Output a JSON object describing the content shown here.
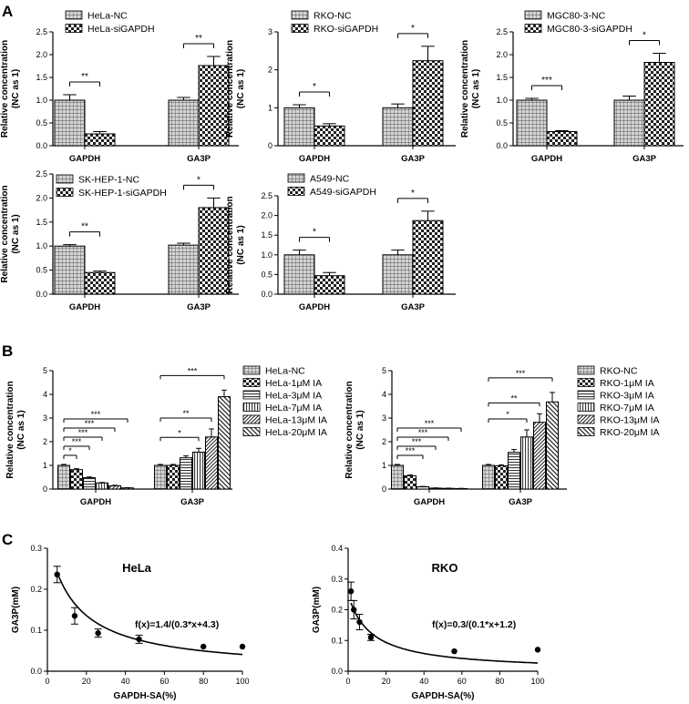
{
  "panel_letters": [
    "A",
    "B",
    "C"
  ],
  "chart_data": [
    {
      "id": "A1",
      "type": "bar",
      "categories": [
        "GAPDH",
        "GA3P"
      ],
      "series": [
        {
          "name": "HeLa-NC",
          "pattern": "grid",
          "values": [
            1.0,
            1.0
          ],
          "errors": [
            0.12,
            0.06
          ]
        },
        {
          "name": "HeLa-siGAPDH",
          "pattern": "check",
          "values": [
            0.26,
            1.76
          ],
          "errors": [
            0.05,
            0.2
          ]
        }
      ],
      "ylabel": [
        "Relative concentration",
        "(NC as 1)"
      ],
      "ylim": [
        0,
        2.5
      ],
      "yticks": [
        "0.0",
        "0.5",
        "1.0",
        "1.5",
        "2.0",
        "2.5"
      ],
      "significance": [
        "**",
        "**"
      ]
    },
    {
      "id": "A2",
      "type": "bar",
      "categories": [
        "GAPDH",
        "GA3P"
      ],
      "series": [
        {
          "name": "RKO-NC",
          "pattern": "grid",
          "values": [
            1.0,
            1.0
          ],
          "errors": [
            0.08,
            0.1
          ]
        },
        {
          "name": "RKO-siGAPDH",
          "pattern": "check",
          "values": [
            0.52,
            2.24
          ],
          "errors": [
            0.06,
            0.38
          ]
        }
      ],
      "ylabel": [
        "Relative concentration",
        "(NC as 1)"
      ],
      "ylim": [
        0,
        3
      ],
      "yticks": [
        "0",
        "1",
        "2",
        "3"
      ],
      "significance": [
        "*",
        "*"
      ]
    },
    {
      "id": "A3",
      "type": "bar",
      "categories": [
        "GAPDH",
        "GA3P"
      ],
      "series": [
        {
          "name": "MGC80-3-NC",
          "pattern": "grid",
          "values": [
            1.0,
            1.0
          ],
          "errors": [
            0.04,
            0.09
          ]
        },
        {
          "name": "MGC80-3-siGAPDH",
          "pattern": "check",
          "values": [
            0.31,
            1.83
          ],
          "errors": [
            0.02,
            0.2
          ]
        }
      ],
      "ylabel": [
        "Relative concentration",
        "(NC as 1)"
      ],
      "ylim": [
        0,
        2.5
      ],
      "yticks": [
        "0.0",
        "0.5",
        "1.0",
        "1.5",
        "2.0",
        "2.5"
      ],
      "significance": [
        "***",
        "*"
      ]
    },
    {
      "id": "A4",
      "type": "bar",
      "categories": [
        "GAPDH",
        "GA3P"
      ],
      "series": [
        {
          "name": "SK-HEP-1-NC",
          "pattern": "grid",
          "values": [
            1.0,
            1.02
          ],
          "errors": [
            0.03,
            0.04
          ]
        },
        {
          "name": "SK-HEP-1-siGAPDH",
          "pattern": "check",
          "values": [
            0.45,
            1.8
          ],
          "errors": [
            0.03,
            0.2
          ]
        }
      ],
      "ylabel": [
        "Relative concentration",
        "(NC as 1)"
      ],
      "ylim": [
        0,
        2.5
      ],
      "yticks": [
        "0.0",
        "0.5",
        "1.0",
        "1.5",
        "2.0",
        "2.5"
      ],
      "significance": [
        "**",
        "*"
      ]
    },
    {
      "id": "A5",
      "type": "bar",
      "categories": [
        "GAPDH",
        "GA3P"
      ],
      "series": [
        {
          "name": "A549-NC",
          "pattern": "grid",
          "values": [
            1.0,
            1.0
          ],
          "errors": [
            0.12,
            0.12
          ]
        },
        {
          "name": "A549-siGAPDH",
          "pattern": "check",
          "values": [
            0.47,
            1.87
          ],
          "errors": [
            0.08,
            0.24
          ]
        }
      ],
      "ylabel": [
        "Relative concentration",
        "(NC as 1)"
      ],
      "ylim": [
        0,
        2.5
      ],
      "yticks": [
        "0.0",
        "0.5",
        "1.0",
        "1.5",
        "2.0",
        "2.5"
      ],
      "significance": [
        "*",
        "*"
      ]
    },
    {
      "id": "B1",
      "type": "bar",
      "categories": [
        "GAPDH",
        "GA3P"
      ],
      "series": [
        {
          "name": "HeLa-NC",
          "pattern": "grid",
          "values": [
            1.0,
            1.0
          ],
          "errors": [
            0.04,
            0.04
          ]
        },
        {
          "name": "HeLa-1μM IA",
          "pattern": "check",
          "values": [
            0.82,
            1.0
          ],
          "errors": [
            0.04,
            0.04
          ]
        },
        {
          "name": "HeLa-3μM IA",
          "pattern": "hlines",
          "values": [
            0.48,
            1.32
          ],
          "errors": [
            0.03,
            0.08
          ]
        },
        {
          "name": "HeLa-7μM IA",
          "pattern": "vlines",
          "values": [
            0.26,
            1.56
          ],
          "errors": [
            0.02,
            0.16
          ]
        },
        {
          "name": "HeLa-13μM IA",
          "pattern": "diag",
          "values": [
            0.14,
            2.2
          ],
          "errors": [
            0.02,
            0.34
          ]
        },
        {
          "name": "HeLa-20μM IA",
          "pattern": "diag2",
          "values": [
            0.05,
            3.9
          ],
          "errors": [
            0.01,
            0.28
          ]
        }
      ],
      "ylabel": [
        "Relative concentration",
        "(NC as 1)"
      ],
      "ylim": [
        0,
        5
      ],
      "yticks": [
        "0",
        "1",
        "2",
        "3",
        "4",
        "5"
      ],
      "significance": [
        [
          "*",
          "***",
          "***",
          "***",
          "***"
        ],
        [
          "*",
          "**",
          "***"
        ]
      ]
    },
    {
      "id": "B2",
      "type": "bar",
      "categories": [
        "GAPDH",
        "GA3P"
      ],
      "series": [
        {
          "name": "RKO-NC",
          "pattern": "grid",
          "values": [
            1.0,
            1.0
          ],
          "errors": [
            0.04,
            0.04
          ]
        },
        {
          "name": "RKO-1μM IA",
          "pattern": "check",
          "values": [
            0.56,
            0.98
          ],
          "errors": [
            0.04,
            0.04
          ]
        },
        {
          "name": "RKO-3μM IA",
          "pattern": "hlines",
          "values": [
            0.1,
            1.55
          ],
          "errors": [
            0.01,
            0.12
          ]
        },
        {
          "name": "RKO-7μM IA",
          "pattern": "vlines",
          "values": [
            0.04,
            2.2
          ],
          "errors": [
            0.01,
            0.3
          ]
        },
        {
          "name": "RKO-13μM IA",
          "pattern": "diag",
          "values": [
            0.03,
            2.82
          ],
          "errors": [
            0.01,
            0.36
          ]
        },
        {
          "name": "RKO-20μM IA",
          "pattern": "diag2",
          "values": [
            0.02,
            3.68
          ],
          "errors": [
            0.01,
            0.4
          ]
        }
      ],
      "ylabel": [
        "Relative concentration",
        "(NC as 1)"
      ],
      "ylim": [
        0,
        5
      ],
      "yticks": [
        "0",
        "1",
        "2",
        "3",
        "4",
        "5"
      ],
      "significance": [
        [
          "***",
          "***",
          "***",
          "***"
        ],
        [
          "*",
          "**",
          "***"
        ]
      ]
    },
    {
      "id": "C1",
      "type": "scatter",
      "title": "HeLa",
      "equation": "f(x)=1.4/(0.3*x+4.3)",
      "fit": {
        "a": 1.4,
        "b": 0.3,
        "c": 4.3
      },
      "points": [
        {
          "x": 5,
          "y": 0.236,
          "err": 0.02
        },
        {
          "x": 14,
          "y": 0.135,
          "err": 0.02
        },
        {
          "x": 26,
          "y": 0.093,
          "err": 0.01
        },
        {
          "x": 47,
          "y": 0.078,
          "err": 0.01
        },
        {
          "x": 80,
          "y": 0.06,
          "err": 0
        },
        {
          "x": 100,
          "y": 0.06,
          "err": 0
        }
      ],
      "xlabel": "GAPDH-SA(%)",
      "ylabel": "GA3P(mM)",
      "xlim": [
        0,
        100
      ],
      "ylim": [
        0,
        0.3
      ],
      "xticks": [
        "0",
        "20",
        "40",
        "60",
        "80",
        "100"
      ],
      "yticks": [
        "0.0",
        "0.1",
        "0.2",
        "0.3"
      ]
    },
    {
      "id": "C2",
      "type": "scatter",
      "title": "RKO",
      "equation": "f(x)=0.3/(0.1*x+1.2)",
      "fit": {
        "a": 0.3,
        "b": 0.1,
        "c": 1.2
      },
      "points": [
        {
          "x": 1.5,
          "y": 0.26,
          "err": 0.03
        },
        {
          "x": 3,
          "y": 0.2,
          "err": 0.03
        },
        {
          "x": 6,
          "y": 0.16,
          "err": 0.025
        },
        {
          "x": 12,
          "y": 0.11,
          "err": 0.01
        },
        {
          "x": 56,
          "y": 0.065,
          "err": 0
        },
        {
          "x": 100,
          "y": 0.07,
          "err": 0
        }
      ],
      "xlabel": "GAPDH-SA(%)",
      "ylabel": "GA3P(mM)",
      "xlim": [
        0,
        100
      ],
      "ylim": [
        0,
        0.4
      ],
      "xticks": [
        "0",
        "20",
        "40",
        "60",
        "80",
        "100"
      ],
      "yticks": [
        "0.0",
        "0.1",
        "0.2",
        "0.3",
        "0.4"
      ]
    }
  ]
}
